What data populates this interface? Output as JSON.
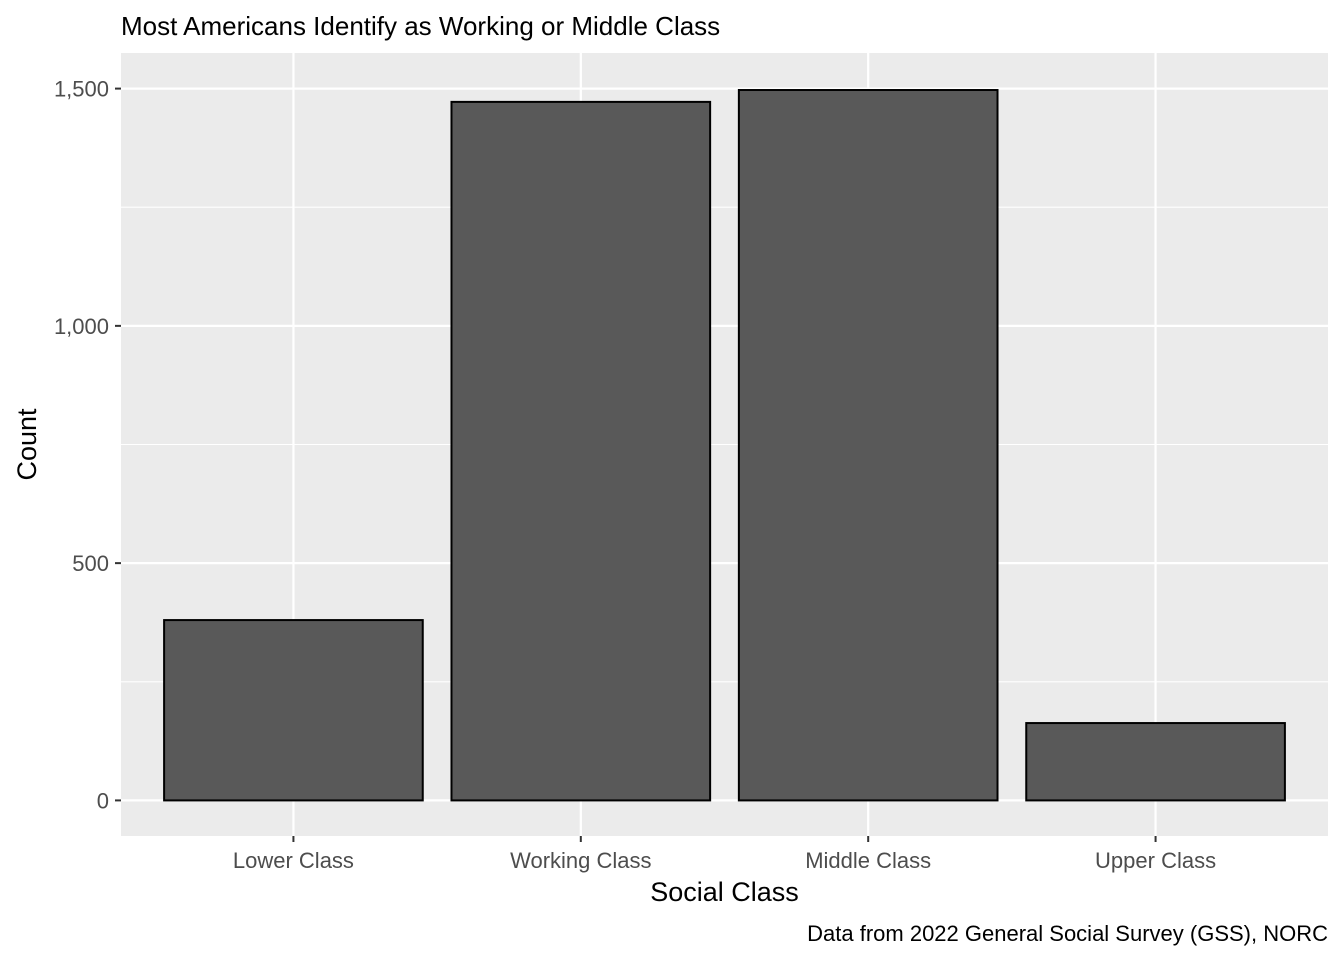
{
  "chart_data": {
    "type": "bar",
    "title": "Most Americans Identify as Working or Middle Class",
    "xlabel": "Social Class",
    "ylabel": "Count",
    "caption": "Data from 2022 General Social Survey (GSS), NORC",
    "categories": [
      "Lower Class",
      "Working Class",
      "Middle Class",
      "Upper Class"
    ],
    "values": [
      380,
      1472,
      1497,
      163
    ],
    "ylim": [
      -75,
      1575
    ],
    "yticks": [
      0,
      500,
      1000,
      1500
    ],
    "ytick_labels": [
      "0",
      "500",
      "1,000",
      "1,500"
    ],
    "yminor": [
      250,
      750,
      1250
    ],
    "bar_fill": "#595959",
    "bar_outline": "#000000",
    "panel_background": "#ebebeb",
    "grid": true,
    "legend": "none"
  }
}
